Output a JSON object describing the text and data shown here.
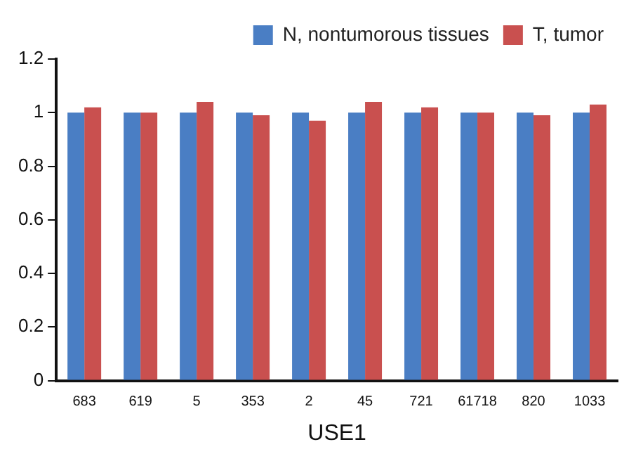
{
  "chart_data": {
    "type": "bar",
    "xlabel": "USE1",
    "categories": [
      "683",
      "619",
      "5",
      "353",
      "2",
      "45",
      "721",
      "61718",
      "820",
      "1033"
    ],
    "series": [
      {
        "name": "N, nontumorous tissues",
        "color": "#4a7ec4",
        "values": [
          1,
          1,
          1,
          1,
          1,
          1,
          1,
          1,
          1,
          1
        ]
      },
      {
        "name": "T, tumor",
        "color": "#c9504f",
        "values": [
          1.02,
          1.0,
          1.04,
          0.99,
          0.97,
          1.04,
          1.02,
          1.0,
          0.99,
          1.03
        ]
      }
    ],
    "ylim": [
      0,
      1.2
    ],
    "yticks": [
      0,
      0.2,
      0.4,
      0.6,
      0.8,
      1,
      1.2
    ],
    "grid": false,
    "legend": "top right"
  }
}
